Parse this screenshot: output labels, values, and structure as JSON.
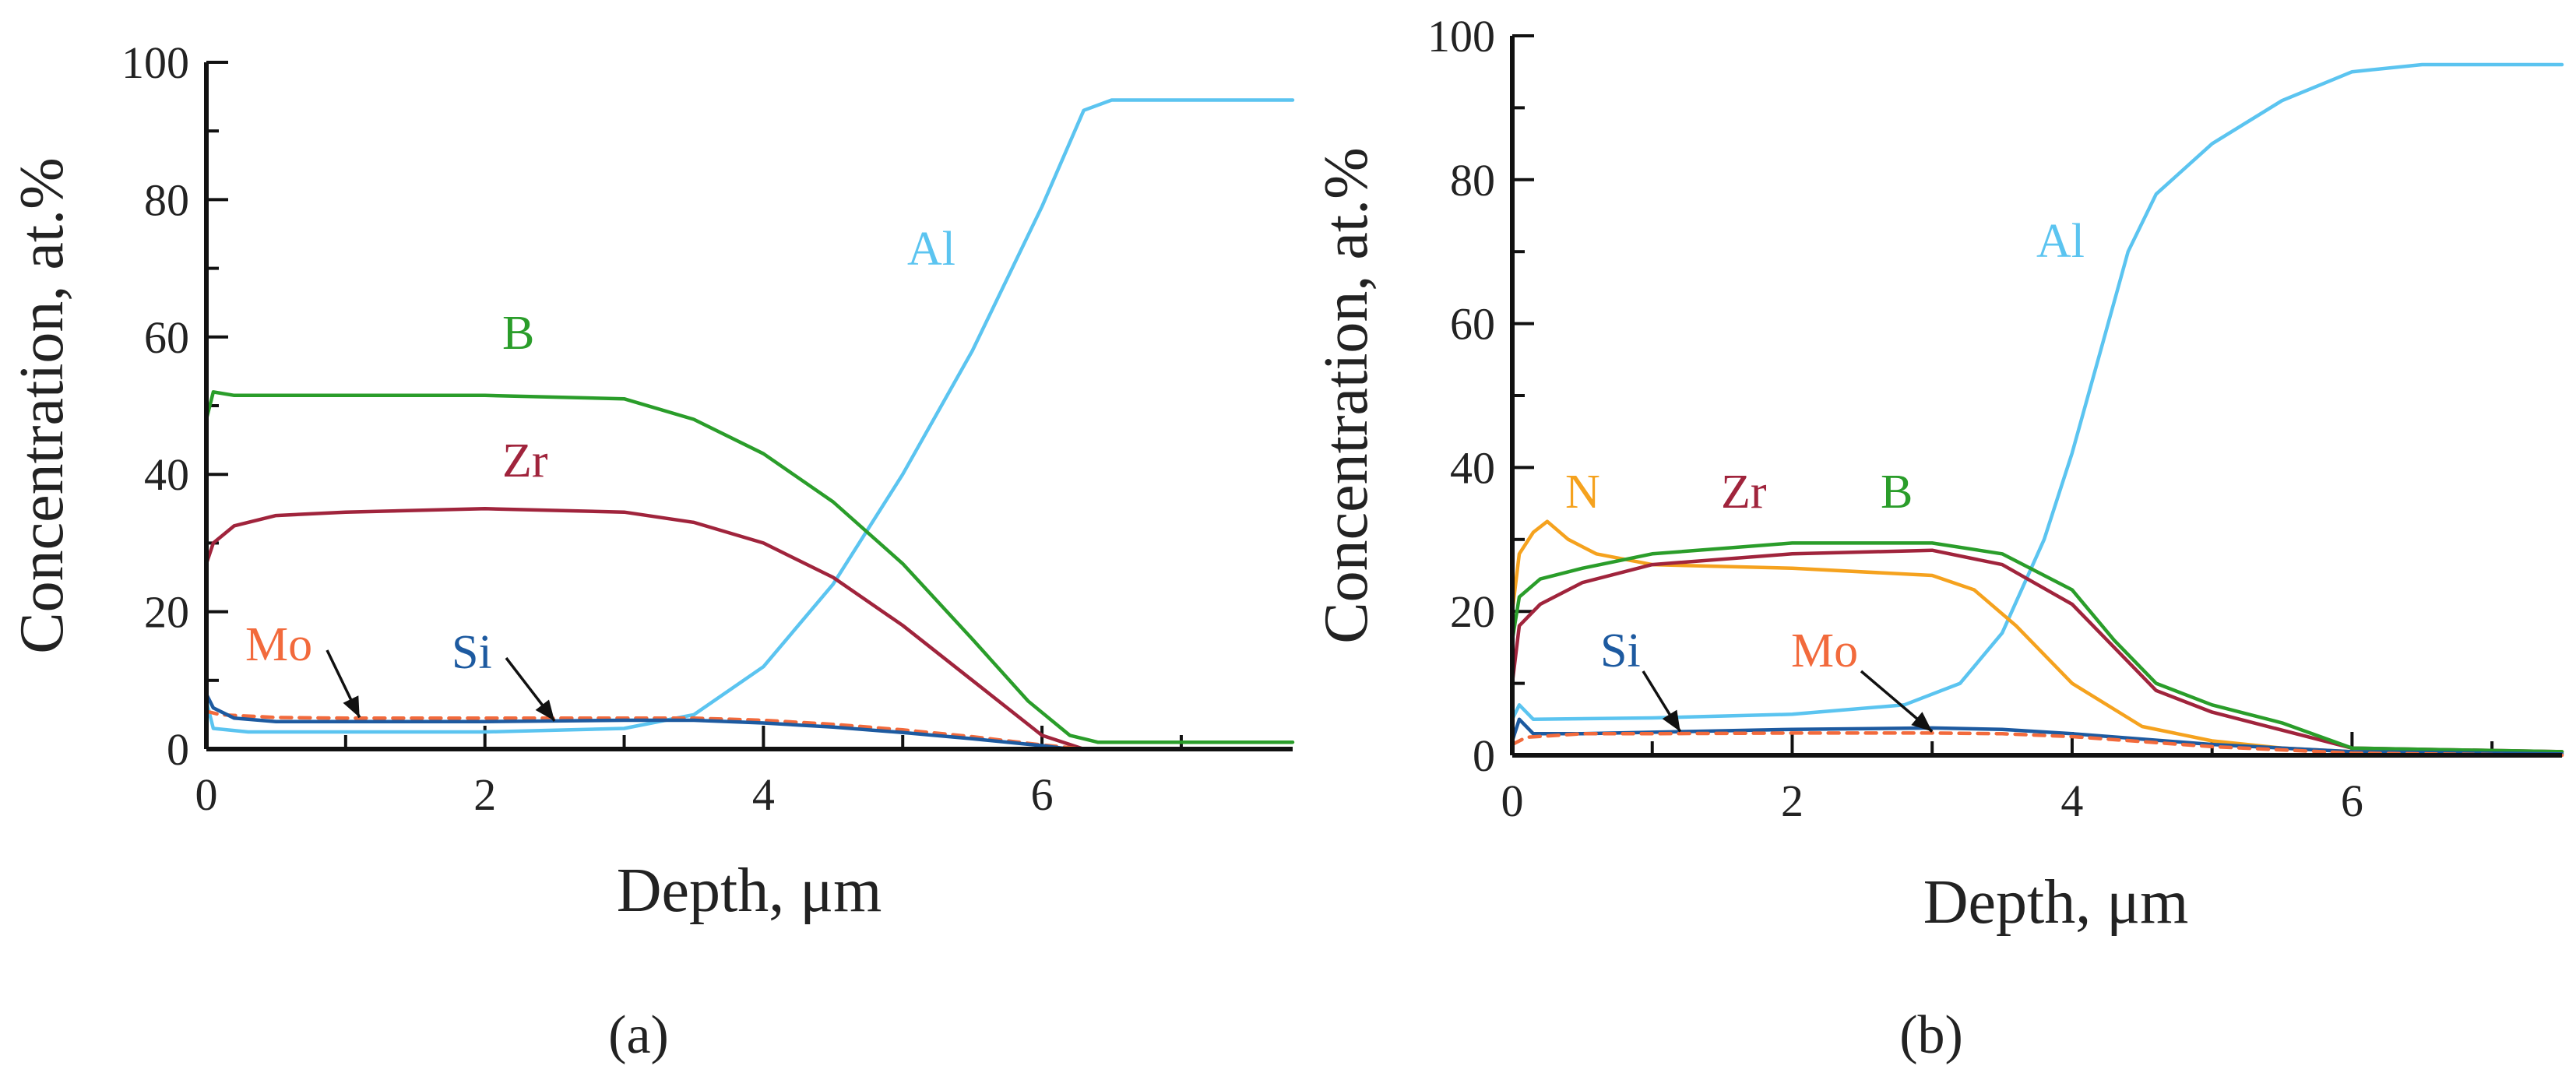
{
  "figure": {
    "panels": [
      "(a)",
      "(b)"
    ]
  },
  "chart_data": [
    {
      "type": "line",
      "panel": "(a)",
      "xlabel": "Depth, μm",
      "ylabel": "Concentration, at.%",
      "xlim": [
        0,
        7.8
      ],
      "ylim": [
        0,
        100
      ],
      "xticks": [
        0,
        2,
        4,
        6
      ],
      "yticks": [
        0,
        20,
        40,
        60,
        80,
        100
      ],
      "series": [
        {
          "name": "Al",
          "color": "#5bc4f0",
          "dashed": false,
          "x": [
            0,
            0.05,
            0.3,
            1,
            2,
            3,
            3.5,
            4,
            4.5,
            5,
            5.5,
            6,
            6.3,
            6.5,
            7.8
          ],
          "y": [
            7,
            3,
            2.5,
            2.5,
            2.5,
            3,
            5,
            12,
            24,
            40,
            58,
            79,
            93,
            94.5,
            94.5
          ]
        },
        {
          "name": "B",
          "color": "#2a9d2a",
          "dashed": false,
          "x": [
            0,
            0.05,
            0.2,
            1,
            2,
            3,
            3.5,
            4,
            4.5,
            5,
            5.5,
            5.9,
            6.2,
            6.4,
            7.8
          ],
          "y": [
            48,
            52,
            51.5,
            51.5,
            51.5,
            51,
            48,
            43,
            36,
            27,
            16,
            7,
            2,
            1,
            1
          ]
        },
        {
          "name": "Zr",
          "color": "#a0243c",
          "dashed": false,
          "x": [
            0,
            0.05,
            0.2,
            0.5,
            1,
            2,
            3,
            3.5,
            4,
            4.5,
            5,
            5.5,
            6,
            6.3
          ],
          "y": [
            27,
            30,
            32.5,
            34,
            34.5,
            35,
            34.5,
            33,
            30,
            25,
            18,
            10,
            2,
            0
          ]
        },
        {
          "name": "Mo",
          "color": "#f26a3c",
          "dashed": true,
          "x": [
            0,
            0.1,
            0.5,
            1,
            2,
            3,
            3.5,
            4,
            4.5,
            5,
            5.5,
            6,
            6.3
          ],
          "y": [
            5.5,
            5,
            4.6,
            4.5,
            4.5,
            4.5,
            4.5,
            4.2,
            3.6,
            2.8,
            1.8,
            0.6,
            0
          ]
        },
        {
          "name": "Si",
          "color": "#1d5aa0",
          "dashed": false,
          "x": [
            0,
            0.05,
            0.2,
            0.5,
            1,
            2,
            3,
            3.5,
            4,
            4.5,
            5,
            5.5,
            6,
            6.2
          ],
          "y": [
            8,
            6,
            4.5,
            4,
            4,
            4,
            4.2,
            4.2,
            3.8,
            3.2,
            2.4,
            1.5,
            0.5,
            0
          ]
        }
      ],
      "annotations": [
        {
          "label": "Mo",
          "arrow_to": [
            1.1,
            4.6
          ]
        },
        {
          "label": "Si",
          "arrow_to": [
            2.5,
            4.1
          ]
        }
      ]
    },
    {
      "type": "line",
      "panel": "(b)",
      "xlabel": "Depth, μm",
      "ylabel": "Concentration, at.%",
      "xlim": [
        0,
        7.5
      ],
      "ylim": [
        0,
        100
      ],
      "xticks": [
        0,
        2,
        4,
        6
      ],
      "yticks": [
        0,
        20,
        40,
        60,
        80,
        100
      ],
      "series": [
        {
          "name": "Al",
          "color": "#5bc4f0",
          "dashed": false,
          "x": [
            0,
            0.05,
            0.15,
            1,
            2,
            2.8,
            3.2,
            3.5,
            3.8,
            4,
            4.2,
            4.4,
            4.6,
            5,
            5.5,
            6,
            6.5,
            7.5
          ],
          "y": [
            5,
            7,
            5,
            5.2,
            5.7,
            7,
            10,
            17,
            30,
            42,
            56,
            70,
            78,
            85,
            91,
            95,
            96,
            96
          ]
        },
        {
          "name": "N",
          "color": "#f5a21e",
          "dashed": false,
          "x": [
            0,
            0.05,
            0.15,
            0.25,
            0.4,
            0.6,
            1,
            2,
            3,
            3.3,
            3.6,
            4,
            4.5,
            5,
            5.5,
            6,
            7.5
          ],
          "y": [
            20,
            28,
            31,
            32.5,
            30,
            28,
            26.5,
            26,
            25,
            23,
            18,
            10,
            4,
            2,
            1,
            0.5,
            0.5
          ]
        },
        {
          "name": "Zr",
          "color": "#a0243c",
          "dashed": false,
          "x": [
            0,
            0.05,
            0.2,
            0.5,
            1,
            2,
            3,
            3.5,
            4,
            4.3,
            4.6,
            5,
            5.5,
            6,
            7.5
          ],
          "y": [
            10,
            18,
            21,
            24,
            26.5,
            28,
            28.5,
            26.5,
            21,
            15,
            9,
            6,
            3.5,
            1,
            0.5
          ]
        },
        {
          "name": "B",
          "color": "#2a9d2a",
          "dashed": false,
          "x": [
            0,
            0.05,
            0.2,
            0.5,
            1,
            2,
            3,
            3.5,
            4,
            4.3,
            4.6,
            5,
            5.5,
            6,
            7.5
          ],
          "y": [
            16,
            22,
            24.5,
            26,
            28,
            29.5,
            29.5,
            28,
            23,
            16,
            10,
            7,
            4.5,
            1,
            0.5
          ]
        },
        {
          "name": "Si",
          "color": "#1d5aa0",
          "dashed": false,
          "x": [
            0,
            0.05,
            0.15,
            0.5,
            1,
            2,
            3,
            3.5,
            4,
            5,
            6,
            7.5
          ],
          "y": [
            2,
            5,
            3,
            3,
            3.2,
            3.6,
            3.8,
            3.6,
            3,
            1.5,
            0.5,
            0.2
          ]
        },
        {
          "name": "Mo",
          "color": "#f26a3c",
          "dashed": true,
          "x": [
            0,
            0.1,
            0.5,
            1,
            2,
            3,
            3.5,
            4,
            5,
            6,
            7.5
          ],
          "y": [
            1.5,
            2.5,
            3,
            3,
            3.1,
            3.1,
            3,
            2.6,
            1.2,
            0.3,
            0
          ]
        }
      ],
      "annotations": [
        {
          "label": "Si",
          "arrow_to": [
            1.2,
            3.3
          ]
        },
        {
          "label": "Mo",
          "arrow_to": [
            3.0,
            3.3
          ]
        }
      ]
    }
  ]
}
